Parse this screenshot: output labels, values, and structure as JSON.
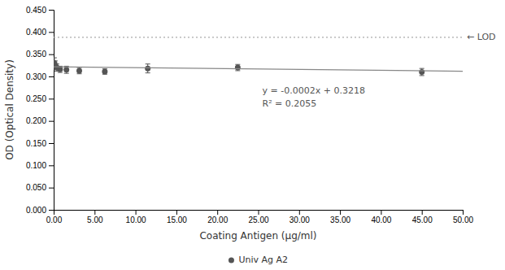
{
  "chart_data": {
    "type": "scatter",
    "x_label": "Coating Antigen (μg/ml)",
    "y_label": "OD (Optical Density)",
    "series": [
      {
        "name": "Univ Ag A2",
        "type": "scatter",
        "marker": "circle",
        "color": "#555555",
        "x": [
          0.09,
          0.19,
          0.39,
          0.78,
          1.56,
          3.13,
          6.25,
          11.5,
          22.5,
          45.0
        ],
        "values": [
          0.33,
          0.325,
          0.32,
          0.316,
          0.315,
          0.313,
          0.311,
          0.318,
          0.32,
          0.31
        ],
        "errors": [
          0.012,
          0.01,
          0.008,
          0.007,
          0.008,
          0.007,
          0.006,
          0.01,
          0.007,
          0.008
        ]
      },
      {
        "type": "line",
        "color": "#888888",
        "x": [
          0,
          50
        ],
        "values": [
          0.3218,
          0.3118
        ]
      }
    ],
    "hlines": [
      {
        "value": 0.388,
        "label": "← LOD",
        "color": "#aaaaaa",
        "line_style": "dotted"
      }
    ],
    "annotations": [
      "y = -0.0002x + 0.3218",
      "R² = 0.2055"
    ],
    "xlim": [
      0,
      50
    ],
    "ylim": [
      0.0,
      0.45
    ],
    "xticks": [
      {
        "value": 0.0,
        "label": "0.00"
      },
      {
        "value": 5.0,
        "label": "5.00"
      },
      {
        "value": 10.0,
        "label": "10.00"
      },
      {
        "value": 15.0,
        "label": "15.00"
      },
      {
        "value": 20.0,
        "label": "20.00"
      },
      {
        "value": 25.0,
        "label": "25.00"
      },
      {
        "value": 30.0,
        "label": "30.00"
      },
      {
        "value": 35.0,
        "label": "35.00"
      },
      {
        "value": 40.0,
        "label": "40.00"
      },
      {
        "value": 45.0,
        "label": "45.00"
      },
      {
        "value": 50.0,
        "label": "50.00"
      }
    ],
    "yticks": [
      {
        "value": 0.0,
        "label": "0.000"
      },
      {
        "value": 0.05,
        "label": "0.050"
      },
      {
        "value": 0.1,
        "label": "0.100"
      },
      {
        "value": 0.15,
        "label": "0.150"
      },
      {
        "value": 0.2,
        "label": "0.200"
      },
      {
        "value": 0.25,
        "label": "0.250"
      },
      {
        "value": 0.3,
        "label": "0.300"
      },
      {
        "value": 0.35,
        "label": "0.350"
      },
      {
        "value": 0.4,
        "label": "0.400"
      },
      {
        "value": 0.45,
        "label": "0.450"
      }
    ],
    "grid": false,
    "legend": "bottom"
  }
}
